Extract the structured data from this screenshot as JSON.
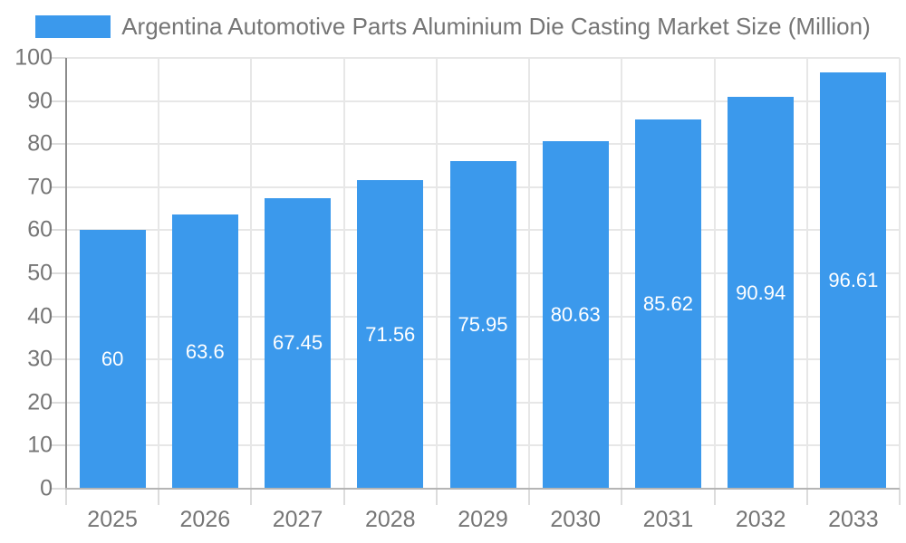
{
  "legend": {
    "label": "Argentina Automotive Parts Aluminium Die Casting Market Size (Million)"
  },
  "chart_data": {
    "type": "bar",
    "title": "Argentina Automotive Parts Aluminium Die Casting Market Size (Million)",
    "categories": [
      "2025",
      "2026",
      "2027",
      "2028",
      "2029",
      "2030",
      "2031",
      "2032",
      "2033"
    ],
    "values": [
      60,
      63.6,
      67.45,
      71.56,
      75.95,
      80.63,
      85.62,
      90.94,
      96.61
    ],
    "value_labels": [
      "60",
      "63.6",
      "67.45",
      "71.56",
      "75.95",
      "80.63",
      "85.62",
      "90.94",
      "96.61"
    ],
    "xlabel": "",
    "ylabel": "",
    "ylim": [
      0,
      100
    ],
    "yticks": [
      0,
      10,
      20,
      30,
      40,
      50,
      60,
      70,
      80,
      90,
      100
    ],
    "grid": "on",
    "legend_position": "top"
  },
  "colors": {
    "bar": "#3b99ec",
    "value_label": "#ffffff",
    "axis_text": "#757575",
    "gridline": "#e7e7e7",
    "tick": "#dcdcdc",
    "y_axis_line": "#8c8c8c",
    "x_axis_line": "#b5b5b5",
    "background": "#ffffff"
  }
}
